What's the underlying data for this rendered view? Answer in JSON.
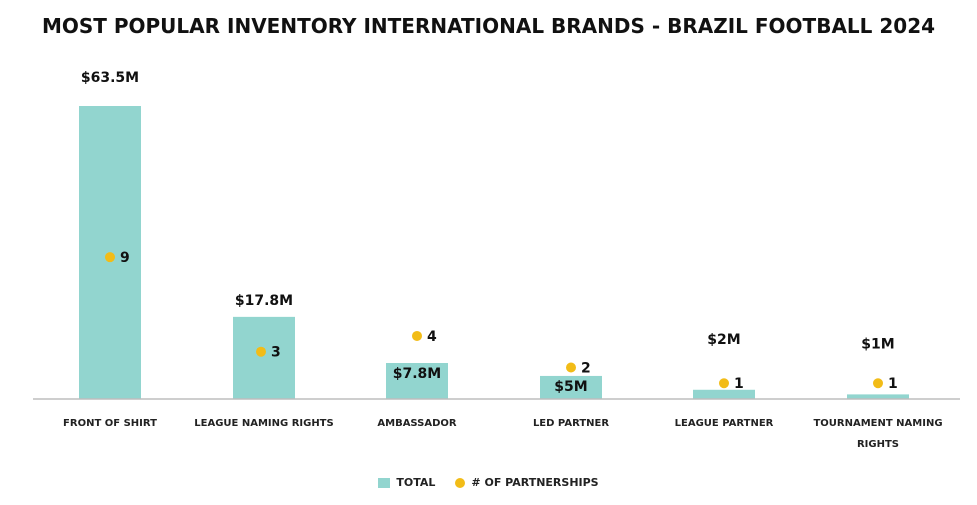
{
  "chart_data": {
    "type": "bar",
    "title": "MOST POPULAR INVENTORY INTERNATIONAL BRANDS - BRAZIL FOOTBALL 2024",
    "categories": [
      [
        "FRONT OF SHIRT"
      ],
      [
        "LEAGUE NAMING RIGHTS"
      ],
      [
        "AMBASSADOR"
      ],
      [
        "LED PARTNER"
      ],
      [
        "LEAGUE PARTNER"
      ],
      [
        "TOURNAMENT NAMING",
        "RIGHTS"
      ]
    ],
    "series": [
      {
        "name": "TOTAL",
        "type": "bar",
        "values": [
          63.5,
          17.8,
          7.8,
          5,
          2,
          1
        ],
        "labels": [
          "$63.5M",
          "$17.8M",
          "$7.8M",
          "$5M",
          "$2M",
          "$1M"
        ],
        "color": "#92d5cf"
      },
      {
        "name": "# OF PARTNERSHIPS",
        "type": "scatter",
        "values": [
          9,
          3,
          4,
          2,
          1,
          1
        ],
        "labels": [
          "9",
          "3",
          "4",
          "2",
          "1",
          "1"
        ],
        "color": "#f2bc17"
      }
    ]
  },
  "legend": {
    "total": "TOTAL",
    "partnerships": "# OF PARTNERSHIPS"
  }
}
